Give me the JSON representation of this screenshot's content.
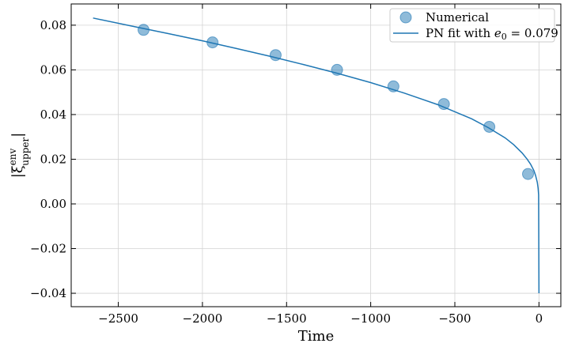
{
  "chart_data": {
    "type": "scatter",
    "xlabel": "Time",
    "ylabel_base": "|ξ",
    "ylabel_sup": "env",
    "ylabel_sub": "upper",
    "ylabel_close": "|",
    "xlim": [
      -2780,
      130
    ],
    "ylim": [
      -0.046,
      0.0895
    ],
    "xticks": [
      -2500,
      -2000,
      -1500,
      -1000,
      -500,
      0
    ],
    "xtick_labels": [
      "−2500",
      "−2000",
      "−1500",
      "−1000",
      "−500",
      "0"
    ],
    "yticks": [
      -0.04,
      -0.02,
      0.0,
      0.02,
      0.04,
      0.06,
      0.08
    ],
    "ytick_labels": [
      "−0.04",
      "−0.02",
      "0.00",
      "0.02",
      "0.04",
      "0.06",
      "0.08"
    ],
    "grid": true,
    "legend_position": "top-right",
    "series": [
      {
        "name": "Numerical",
        "kind": "scatter",
        "color": "#1f77b4",
        "x": [
          -2350,
          -1940,
          -1565,
          -1200,
          -865,
          -565,
          -295,
          -65
        ],
        "y": [
          0.0779,
          0.0723,
          0.0666,
          0.06,
          0.0526,
          0.0447,
          0.0345,
          0.0134
        ]
      },
      {
        "name": "PN fit with ",
        "name_math": "e",
        "name_math_sub": "0",
        "name_suffix": " = 0.079",
        "kind": "line",
        "color": "#1f77b4",
        "x": [
          -2650,
          -2400,
          -2200,
          -2000,
          -1800,
          -1600,
          -1400,
          -1200,
          -1000,
          -800,
          -600,
          -400,
          -300,
          -200,
          -150,
          -100,
          -70,
          -50,
          -30,
          -20,
          -10,
          -5,
          -2,
          0
        ],
        "y": [
          0.0832,
          0.0793,
          0.0762,
          0.073,
          0.0696,
          0.0661,
          0.0624,
          0.0585,
          0.0543,
          0.0496,
          0.0444,
          0.0381,
          0.0341,
          0.0295,
          0.0265,
          0.0228,
          0.02,
          0.0178,
          0.0149,
          0.0127,
          0.0097,
          0.007,
          0.004,
          -0.04
        ]
      }
    ]
  }
}
